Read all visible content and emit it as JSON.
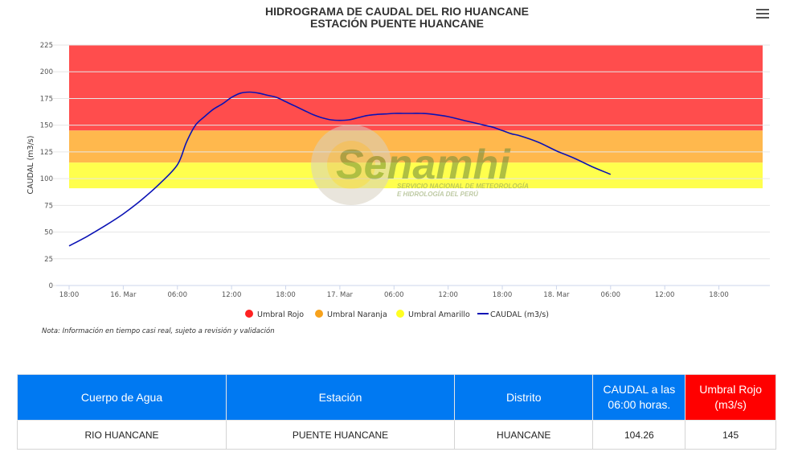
{
  "chart_data": {
    "type": "line",
    "title": "HIDROGRAMA DE CAUDAL DEL RIO HUANCANE",
    "subtitle": "ESTACIÓN PUENTE HUANCANE",
    "ylabel": "CAUDAL (m3/s)",
    "xlabel": "",
    "ylim": [
      0,
      225
    ],
    "yticks": [
      0,
      25,
      50,
      75,
      100,
      125,
      150,
      175,
      200,
      225
    ],
    "xlim_hours": [
      0,
      66
    ],
    "xticks": [
      {
        "h": 0,
        "label": "18:00"
      },
      {
        "h": 6,
        "label": "16. Mar"
      },
      {
        "h": 12,
        "label": "06:00"
      },
      {
        "h": 18,
        "label": "12:00"
      },
      {
        "h": 24,
        "label": "18:00"
      },
      {
        "h": 30,
        "label": "17. Mar"
      },
      {
        "h": 36,
        "label": "06:00"
      },
      {
        "h": 42,
        "label": "12:00"
      },
      {
        "h": 48,
        "label": "18:00"
      },
      {
        "h": 54,
        "label": "18. Mar"
      },
      {
        "h": 60,
        "label": "06:00"
      },
      {
        "h": 66,
        "label": "12:00"
      },
      {
        "h": 72,
        "label": "18:00"
      }
    ],
    "grid": true,
    "legend_position": "bottom",
    "bands": [
      {
        "name": "Umbral Rojo",
        "from": 145,
        "to": 225,
        "color": "#ff4d4d"
      },
      {
        "name": "Umbral Naranja",
        "from": 115,
        "to": 145,
        "color": "#ffb84d"
      },
      {
        "name": "Umbral Amarillo",
        "from": 91,
        "to": 115,
        "color": "#ffff4d"
      }
    ],
    "legend": [
      {
        "name": "Umbral Rojo",
        "color": "#ff2222",
        "kind": "dot"
      },
      {
        "name": "Umbral Naranja",
        "color": "#f7a21c",
        "kind": "dot"
      },
      {
        "name": "Umbral Amarillo",
        "color": "#ffff22",
        "kind": "dot"
      },
      {
        "name": "CAUDAL (m3/s)",
        "color": "#0a12b5",
        "kind": "line"
      }
    ],
    "series": [
      {
        "name": "CAUDAL (m3/s)",
        "color": "#0a12b5",
        "x": [
          0,
          2,
          4,
          6,
          8,
          10,
          12,
          13,
          14,
          15,
          16,
          17,
          18,
          19,
          20,
          21,
          22,
          23,
          24,
          25,
          26,
          27,
          28,
          29,
          30,
          31,
          32,
          33,
          34,
          35,
          36,
          37,
          38,
          39,
          40,
          42,
          44,
          46,
          47,
          48,
          49,
          50,
          52,
          54,
          56,
          58,
          60
        ],
        "values": [
          37,
          46,
          56,
          67,
          80,
          95,
          113,
          134,
          150,
          158,
          165,
          170,
          176,
          180,
          181,
          180,
          178,
          176,
          172,
          168,
          164,
          160,
          157,
          155,
          154.5,
          155,
          157,
          159,
          160,
          160.5,
          161,
          161,
          161,
          161,
          160.5,
          158,
          154,
          150,
          148,
          145,
          142,
          140,
          134,
          126,
          119,
          111,
          104
        ]
      }
    ]
  },
  "watermark": {
    "brand": "Senamhi",
    "tagline1": "SERVICIO NACIONAL DE METEOROLOGÍA",
    "tagline2": "E HIDROLOGÍA DEL PERÚ"
  },
  "note": "Nota: Información en tiempo casi real, sujeto a revisión y validación",
  "table": {
    "headers": [
      "Cuerpo de Agua",
      "Estación",
      "Distrito",
      "CAUDAL a las 06:00 horas.",
      "Umbral Rojo (m3/s)"
    ],
    "row": [
      "RIO HUANCANE",
      "PUENTE HUANCANE",
      "HUANCANE",
      "104.26",
      "145"
    ]
  }
}
